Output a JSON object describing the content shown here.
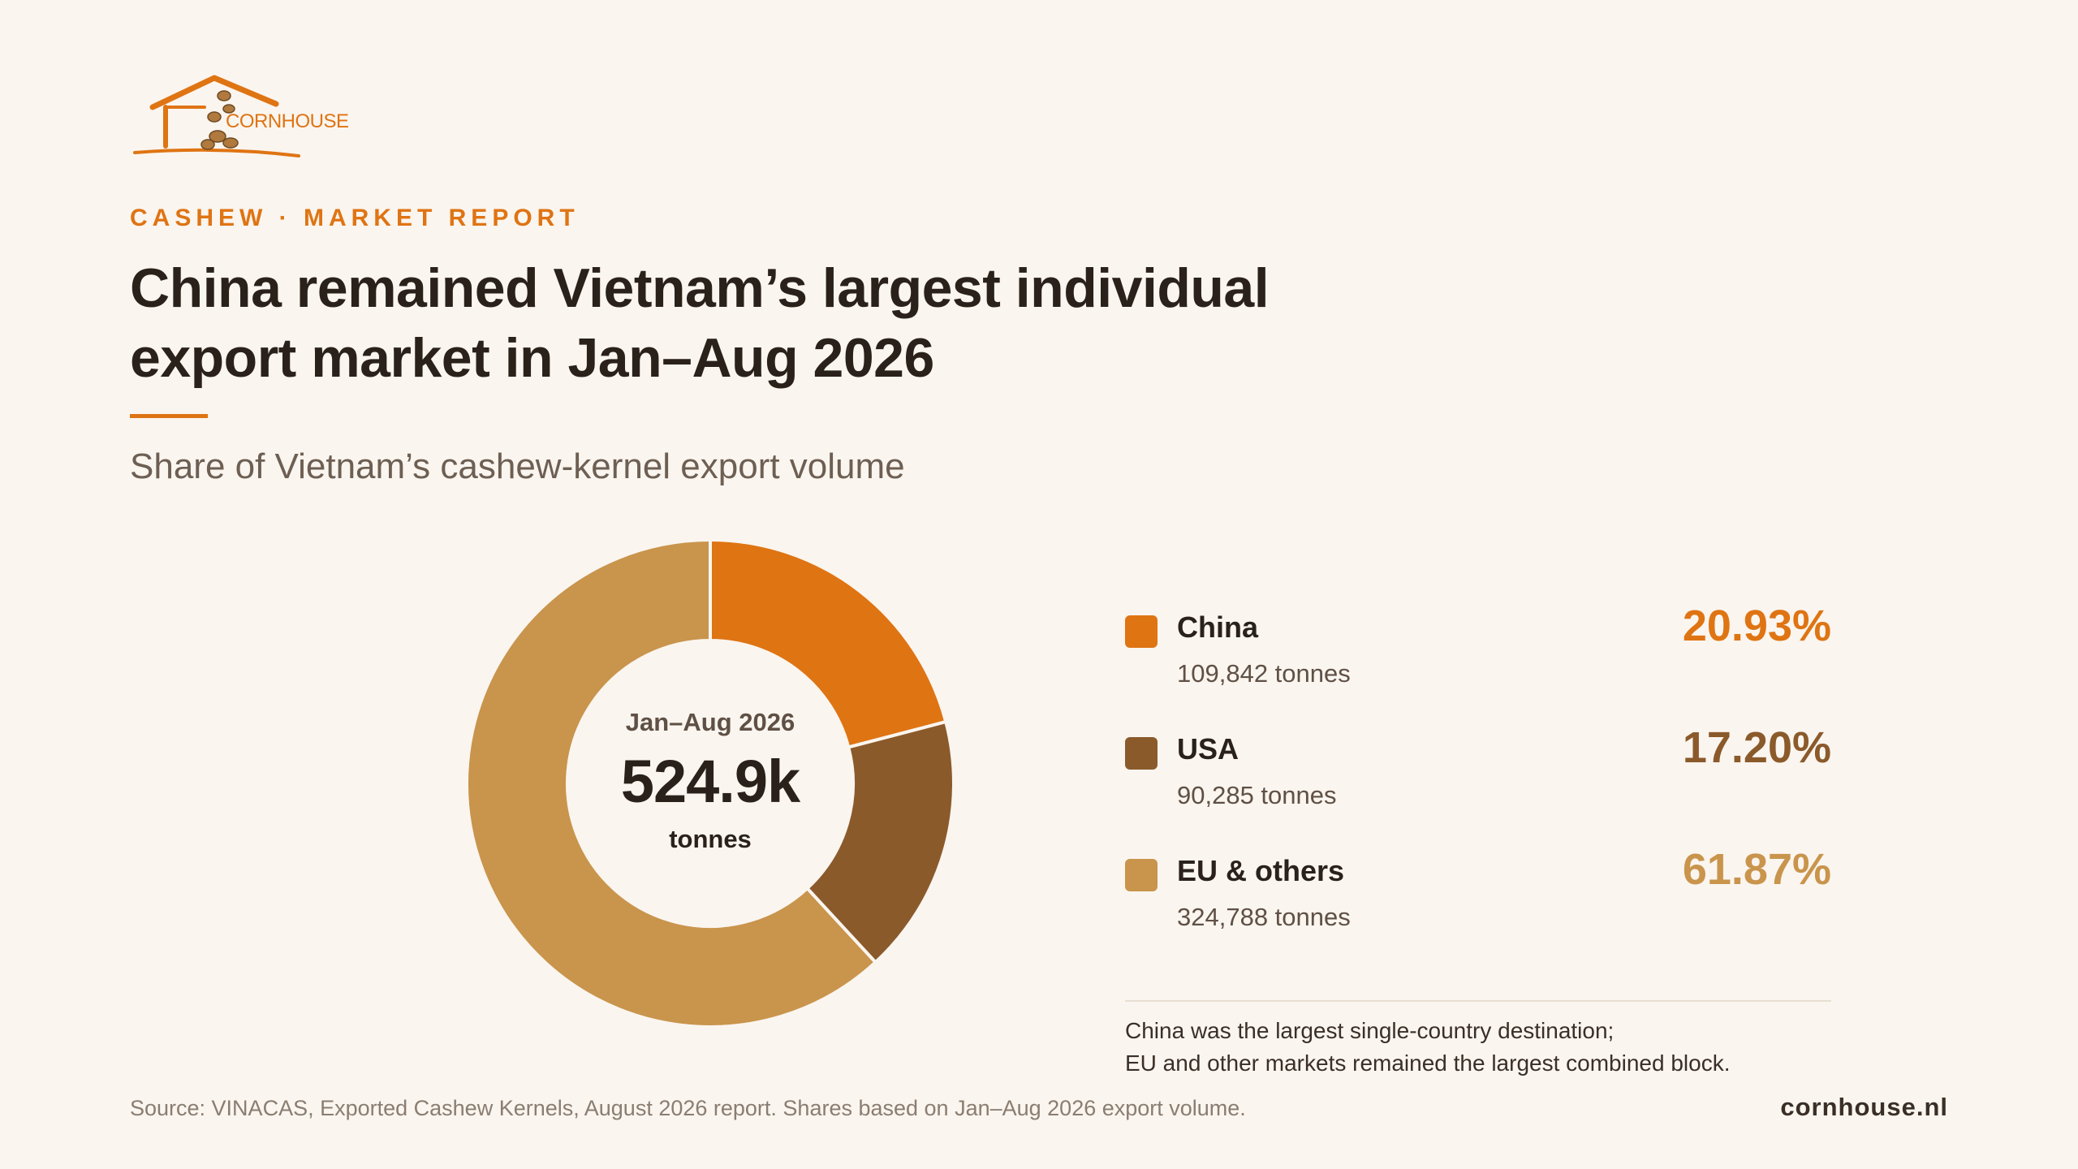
{
  "brand": {
    "logo_text": "CORNHOUSE",
    "website": "cornhouse.nl",
    "accent_color": "#df7413"
  },
  "eyebrow": "CASHEW · MARKET REPORT",
  "title_line1": "China remained Vietnam’s largest individual",
  "title_line2": "export market in Jan–Aug 2026",
  "subtitle": "Share of Vietnam’s cashew-kernel export volume",
  "center": {
    "period": "Jan–Aug 2026",
    "total": "524.9k",
    "unit": "tonnes"
  },
  "chart_data": {
    "type": "pie",
    "donut": true,
    "legend_position": "right",
    "slices": [
      {
        "label": "China",
        "value": 20.93,
        "percent_label": "20.93%",
        "tonnes": "109,842 tonnes",
        "color": "#df7413"
      },
      {
        "label": "USA",
        "value": 17.2,
        "percent_label": "17.20%",
        "tonnes": "90,285 tonnes",
        "color": "#8b5a2b"
      },
      {
        "label": "EU & others",
        "value": 61.87,
        "percent_label": "61.87%",
        "tonnes": "324,788 tonnes",
        "color": "#c9944c"
      }
    ]
  },
  "note_line1": "China was the largest single-country destination;",
  "note_line2": "EU and other markets remained the largest combined block.",
  "source": "Source: VINACAS, Exported Cashew Kernels, August 2026 report. Shares based on Jan–Aug 2026 export volume."
}
